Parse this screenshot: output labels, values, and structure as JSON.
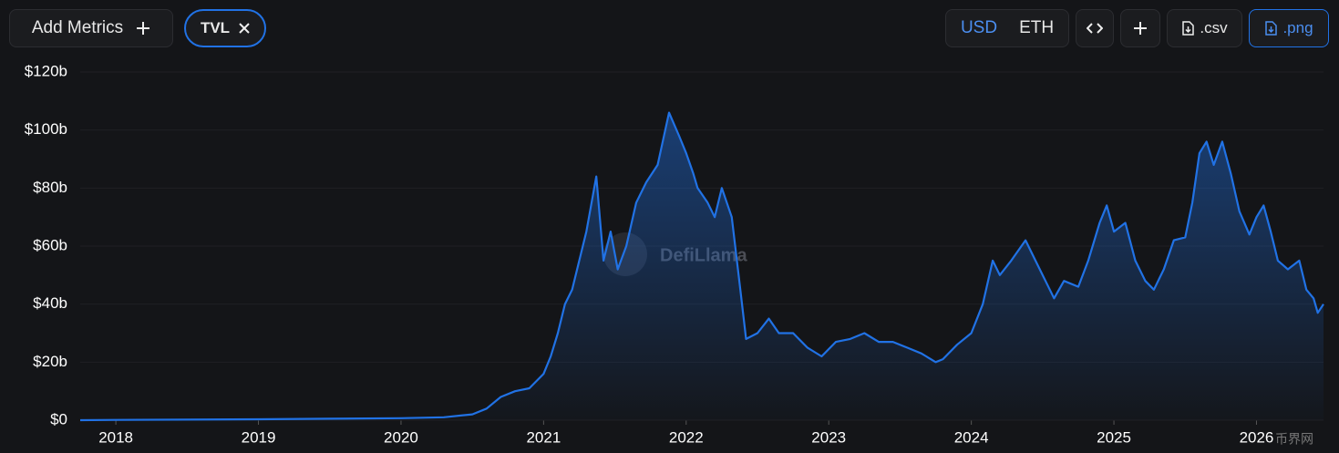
{
  "toolbar": {
    "add_metrics": "Add Metrics",
    "metric_tag": "TVL",
    "currencies": [
      "USD",
      "ETH"
    ],
    "downloads": [
      ".csv",
      ".png"
    ]
  },
  "chart_data": {
    "type": "line",
    "watermark": "DefiLlama",
    "corner_watermark": "币界网",
    "x": [
      2017.75,
      2018.0,
      2019.0,
      2019.5,
      2020.0,
      2020.3,
      2020.5,
      2020.6,
      2020.7,
      2020.8,
      2020.9,
      2021.0,
      2021.05,
      2021.1,
      2021.15,
      2021.2,
      2021.25,
      2021.3,
      2021.37,
      2021.42,
      2021.47,
      2021.52,
      2021.58,
      2021.65,
      2021.72,
      2021.8,
      2021.88,
      2021.95,
      2022.0,
      2022.05,
      2022.08,
      2022.15,
      2022.2,
      2022.25,
      2022.32,
      2022.38,
      2022.42,
      2022.5,
      2022.58,
      2022.65,
      2022.75,
      2022.85,
      2022.95,
      2023.05,
      2023.15,
      2023.25,
      2023.35,
      2023.45,
      2023.55,
      2023.65,
      2023.75,
      2023.8,
      2023.9,
      2024.0,
      2024.08,
      2024.15,
      2024.2,
      2024.28,
      2024.38,
      2024.45,
      2024.52,
      2024.58,
      2024.65,
      2024.75,
      2024.82,
      2024.9,
      2024.95,
      2025.0,
      2025.08,
      2025.15,
      2025.22,
      2025.28,
      2025.35,
      2025.42,
      2025.5,
      2025.55,
      2025.6,
      2025.65,
      2025.7,
      2025.76,
      2025.82,
      2025.88,
      2025.95,
      2026.0,
      2026.05,
      2026.1,
      2026.15,
      2026.22,
      2026.3,
      2026.35,
      2026.4,
      2026.43,
      2026.47
    ],
    "series": [
      {
        "name": "TVL",
        "color": "#2172e5",
        "values": [
          0,
          0.1,
          0.3,
          0.5,
          0.7,
          1,
          2,
          4,
          8,
          10,
          11,
          16,
          22,
          30,
          40,
          45,
          55,
          65,
          84,
          55,
          65,
          52,
          60,
          75,
          82,
          88,
          106,
          98,
          92,
          85,
          80,
          75,
          70,
          80,
          70,
          45,
          28,
          30,
          35,
          30,
          30,
          25,
          22,
          27,
          28,
          30,
          27,
          27,
          25,
          23,
          20,
          21,
          26,
          30,
          40,
          55,
          50,
          55,
          62,
          55,
          48,
          42,
          48,
          46,
          55,
          68,
          74,
          65,
          68,
          55,
          48,
          45,
          52,
          62,
          63,
          75,
          92,
          96,
          88,
          96,
          85,
          72,
          64,
          70,
          74,
          65,
          55,
          52,
          55,
          45,
          42,
          37,
          40
        ]
      }
    ],
    "xlim": [
      2017.75,
      2026.47
    ],
    "ylim": [
      0,
      120
    ],
    "xticks": [
      2018,
      2019,
      2020,
      2021,
      2022,
      2023,
      2024,
      2025,
      2026
    ],
    "yticks": [
      {
        "value": 0,
        "label": "$0"
      },
      {
        "value": 20,
        "label": "$20b"
      },
      {
        "value": 40,
        "label": "$40b"
      },
      {
        "value": 60,
        "label": "$60b"
      },
      {
        "value": 80,
        "label": "$80b"
      },
      {
        "value": 100,
        "label": "$100b"
      },
      {
        "value": 120,
        "label": "$120b"
      }
    ],
    "grid": true
  }
}
